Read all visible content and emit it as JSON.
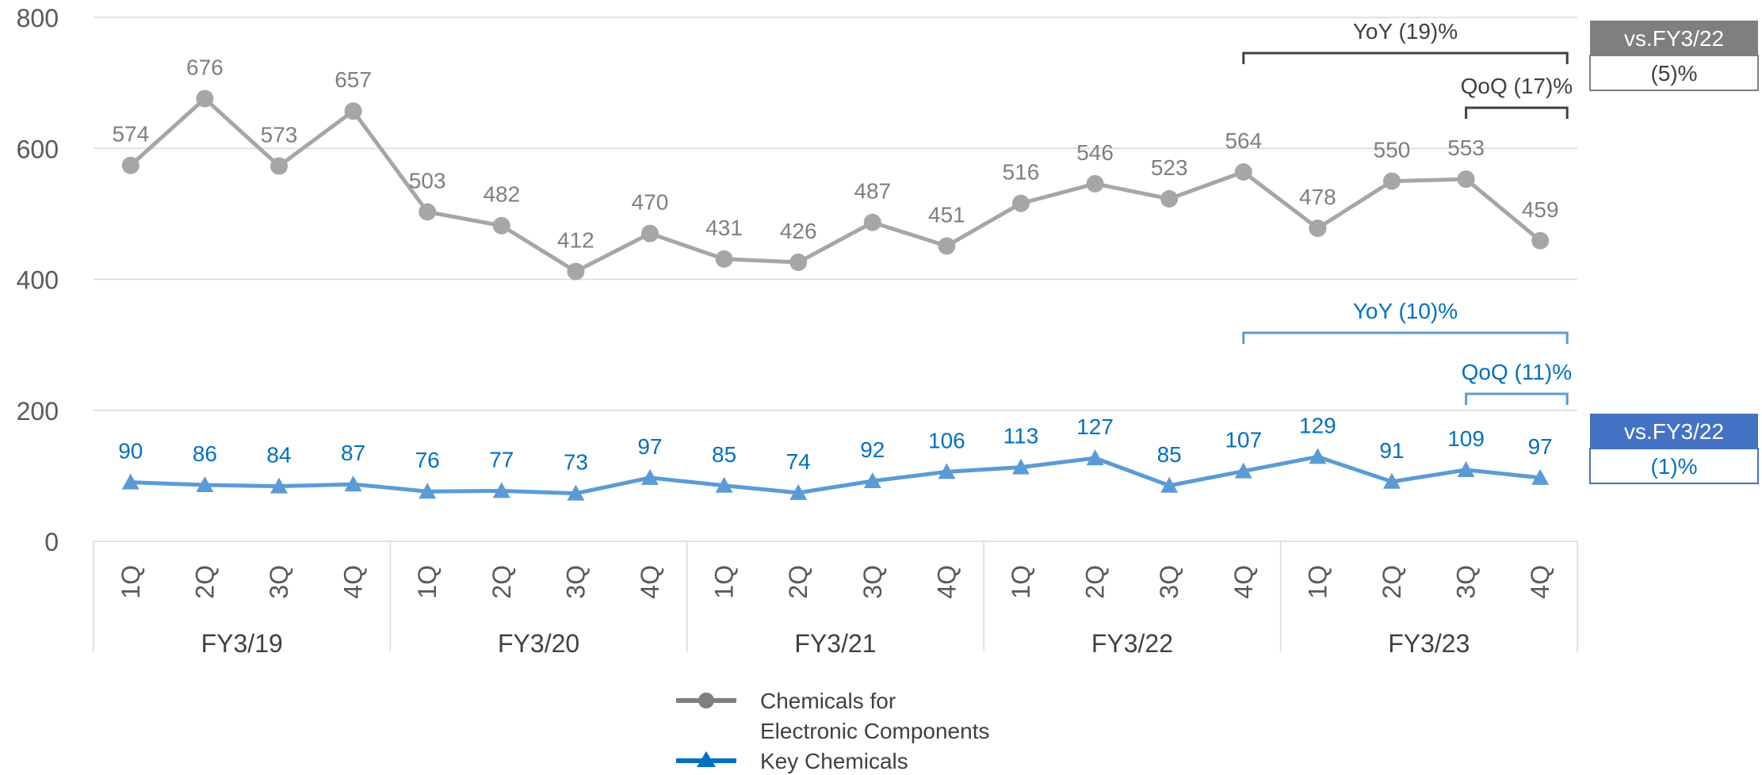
{
  "chart_data": {
    "type": "line",
    "ylim": [
      0,
      800
    ],
    "yticks": [
      0,
      200,
      400,
      600,
      800
    ],
    "grid": true,
    "categories": [
      "1Q",
      "2Q",
      "3Q",
      "4Q",
      "1Q",
      "2Q",
      "3Q",
      "4Q",
      "1Q",
      "2Q",
      "3Q",
      "4Q",
      "1Q",
      "2Q",
      "3Q",
      "4Q",
      "1Q",
      "2Q",
      "3Q",
      "4Q"
    ],
    "groups": [
      {
        "label": "FY3/19",
        "span": 4
      },
      {
        "label": "FY3/20",
        "span": 4
      },
      {
        "label": "FY3/21",
        "span": 4
      },
      {
        "label": "FY3/22",
        "span": 4
      },
      {
        "label": "FY3/23",
        "span": 4
      }
    ],
    "series": [
      {
        "name": "Chemicals for Electronic Components",
        "legend_lines": [
          "Chemicals for",
          "Electronic Components"
        ],
        "marker": "circle",
        "color": "#a6a6a6",
        "label_color": "#7f7f7f",
        "values": [
          574,
          676,
          573,
          657,
          503,
          482,
          412,
          470,
          431,
          426,
          487,
          451,
          516,
          546,
          523,
          564,
          478,
          550,
          553,
          459
        ]
      },
      {
        "name": "Key Chemicals",
        "legend_lines": [
          "Key Chemicals"
        ],
        "marker": "triangle",
        "color": "#5b9bd5",
        "label_color": "#0070c0",
        "values": [
          90,
          86,
          84,
          87,
          76,
          77,
          73,
          97,
          85,
          74,
          92,
          106,
          113,
          127,
          85,
          107,
          129,
          91,
          109,
          97
        ]
      }
    ],
    "annotations": [
      {
        "text": "YoY (19)%",
        "from": 15,
        "to": 19,
        "series": 0,
        "level": 0
      },
      {
        "text": "QoQ (17)%",
        "from": 18,
        "to": 19,
        "series": 0,
        "level": 1
      },
      {
        "text": "YoY (10)%",
        "from": 15,
        "to": 19,
        "series": 1,
        "level": 0
      },
      {
        "text": "QoQ (11)%",
        "from": 18,
        "to": 19,
        "series": 1,
        "level": 1
      }
    ],
    "side_boxes": [
      {
        "header": "vs.FY3/22",
        "value": "(5)%",
        "series": 0,
        "header_color": "#7f7f7f",
        "value_color": "#404040"
      },
      {
        "header": "vs.FY3/22",
        "value": "(1)%",
        "series": 1,
        "header_color": "#4472c4",
        "value_color": "#0070c0"
      }
    ]
  }
}
